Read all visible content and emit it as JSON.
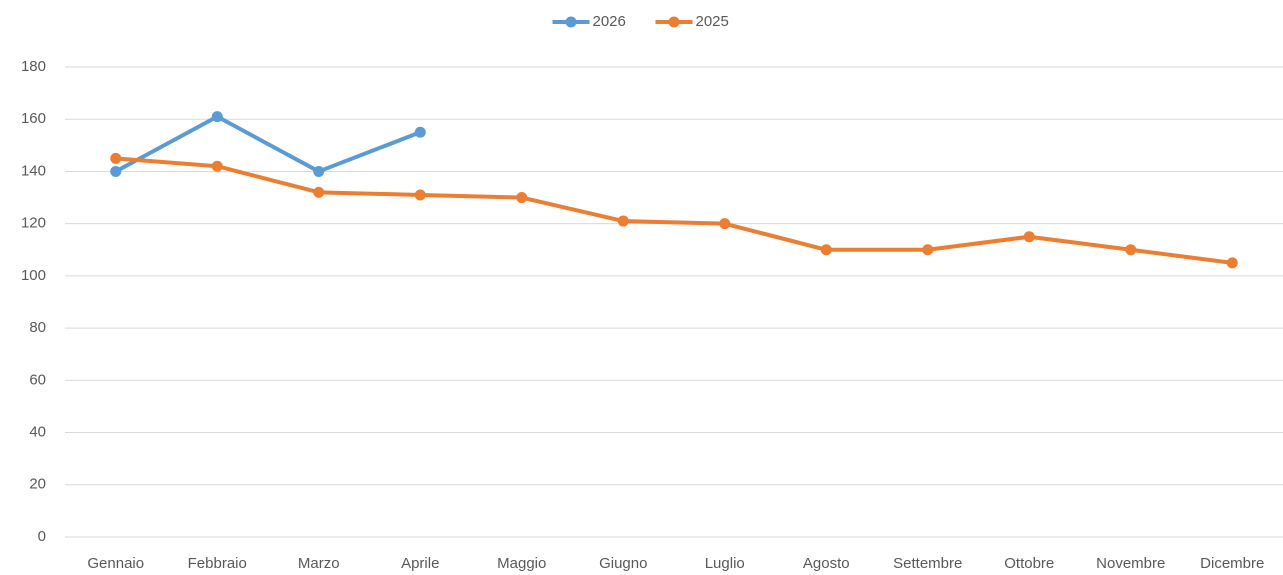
{
  "chart_data": {
    "type": "line",
    "categories": [
      "Gennaio",
      "Febbraio",
      "Marzo",
      "Aprile",
      "Maggio",
      "Giugno",
      "Luglio",
      "Agosto",
      "Settembre",
      "Ottobre",
      "Novembre",
      "Dicembre"
    ],
    "series": [
      {
        "name": "2026",
        "color": "#5b9bd5",
        "values": [
          140,
          161,
          140,
          155,
          null,
          null,
          null,
          null,
          null,
          null,
          null,
          null
        ]
      },
      {
        "name": "2025",
        "color": "#ed7d31",
        "values": [
          145,
          142,
          132,
          131,
          130,
          121,
          120,
          110,
          110,
          115,
          110,
          105
        ]
      }
    ],
    "ylim": [
      0,
      180
    ],
    "yticks": [
      0,
      20,
      40,
      60,
      80,
      100,
      120,
      140,
      160,
      180
    ],
    "grid": true,
    "legend": "top"
  }
}
